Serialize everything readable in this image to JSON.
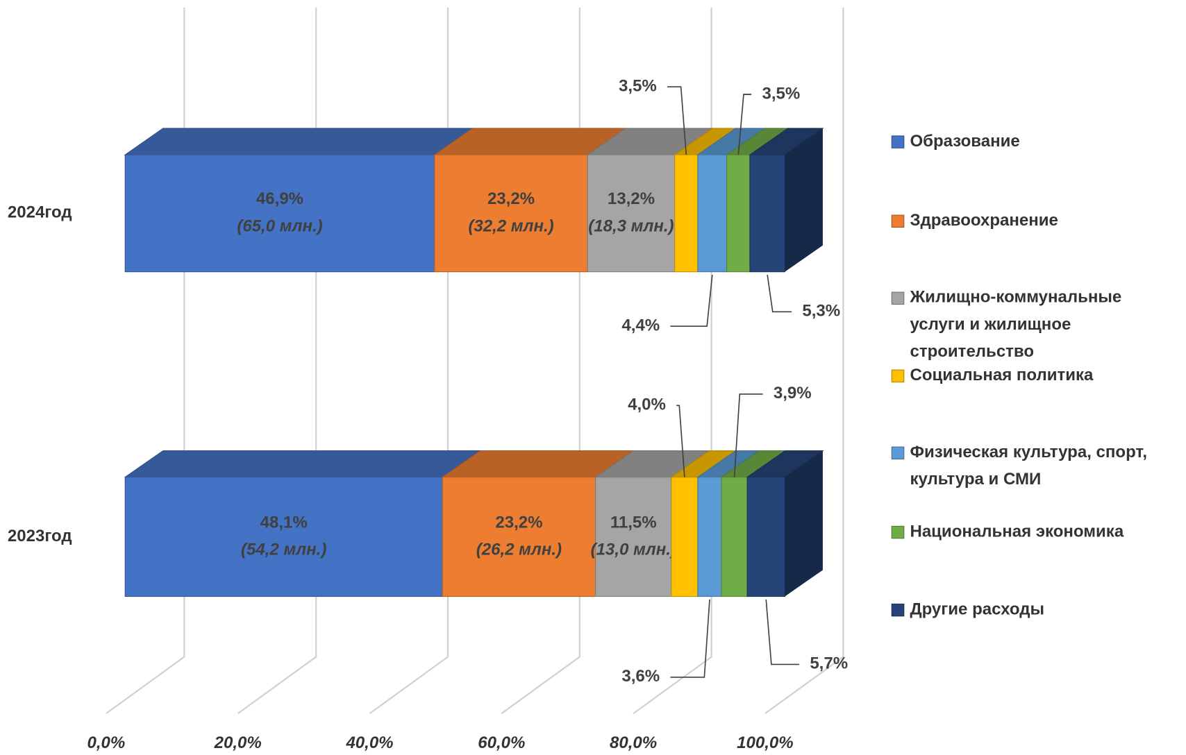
{
  "chart_data": {
    "type": "bar3d_stacked_horizontal",
    "categories": [
      "2024год",
      "2023год"
    ],
    "series": [
      {
        "name": "Образование",
        "color": "#4472c4",
        "values": [
          46.9,
          48.1
        ],
        "value_labels": [
          "46,9%",
          "48,1%"
        ],
        "amount_labels": [
          "(65,0 млн.)",
          "(54,2 млн.)"
        ]
      },
      {
        "name": "Здравоохранение",
        "color": "#ed7d31",
        "values": [
          23.2,
          23.2
        ],
        "value_labels": [
          "23,2%",
          "23,2%"
        ],
        "amount_labels": [
          "(32,2 млн.)",
          "(26,2 млн.)"
        ]
      },
      {
        "name": "Жилищно-коммунальные услуги и жилищное строительство",
        "color": "#a5a5a5",
        "values": [
          13.2,
          11.5
        ],
        "value_labels": [
          "13,2%",
          "11,5%"
        ],
        "amount_labels": [
          "(18,3 млн.)",
          "(13,0 млн.)"
        ]
      },
      {
        "name": "Социальная политика",
        "color": "#ffc000",
        "values": [
          3.5,
          4.0
        ],
        "value_labels": [
          "3,5%",
          "4,0%"
        ]
      },
      {
        "name": "Физическая культура, спорт, культура и СМИ",
        "color": "#5b9bd5",
        "values": [
          4.4,
          3.6
        ],
        "value_labels": [
          "4,4%",
          "3,6%"
        ]
      },
      {
        "name": "Национальная экономика",
        "color": "#70ad47",
        "values": [
          3.5,
          3.9
        ],
        "value_labels": [
          "3,5%",
          "3,9%"
        ]
      },
      {
        "name": "Другие расходы",
        "color": "#264478",
        "values": [
          5.3,
          5.7
        ],
        "value_labels": [
          "5,3%",
          "5,7%"
        ]
      }
    ],
    "xlim": [
      0,
      100
    ],
    "xticks": [
      {
        "value": 0,
        "label": "0,0%"
      },
      {
        "value": 20,
        "label": "20,0%"
      },
      {
        "value": 40,
        "label": "40,0%"
      },
      {
        "value": 60,
        "label": "60,0%"
      },
      {
        "value": 80,
        "label": "80,0%"
      },
      {
        "value": 100,
        "label": "100,0%"
      }
    ],
    "grid": true,
    "legend": "right"
  }
}
